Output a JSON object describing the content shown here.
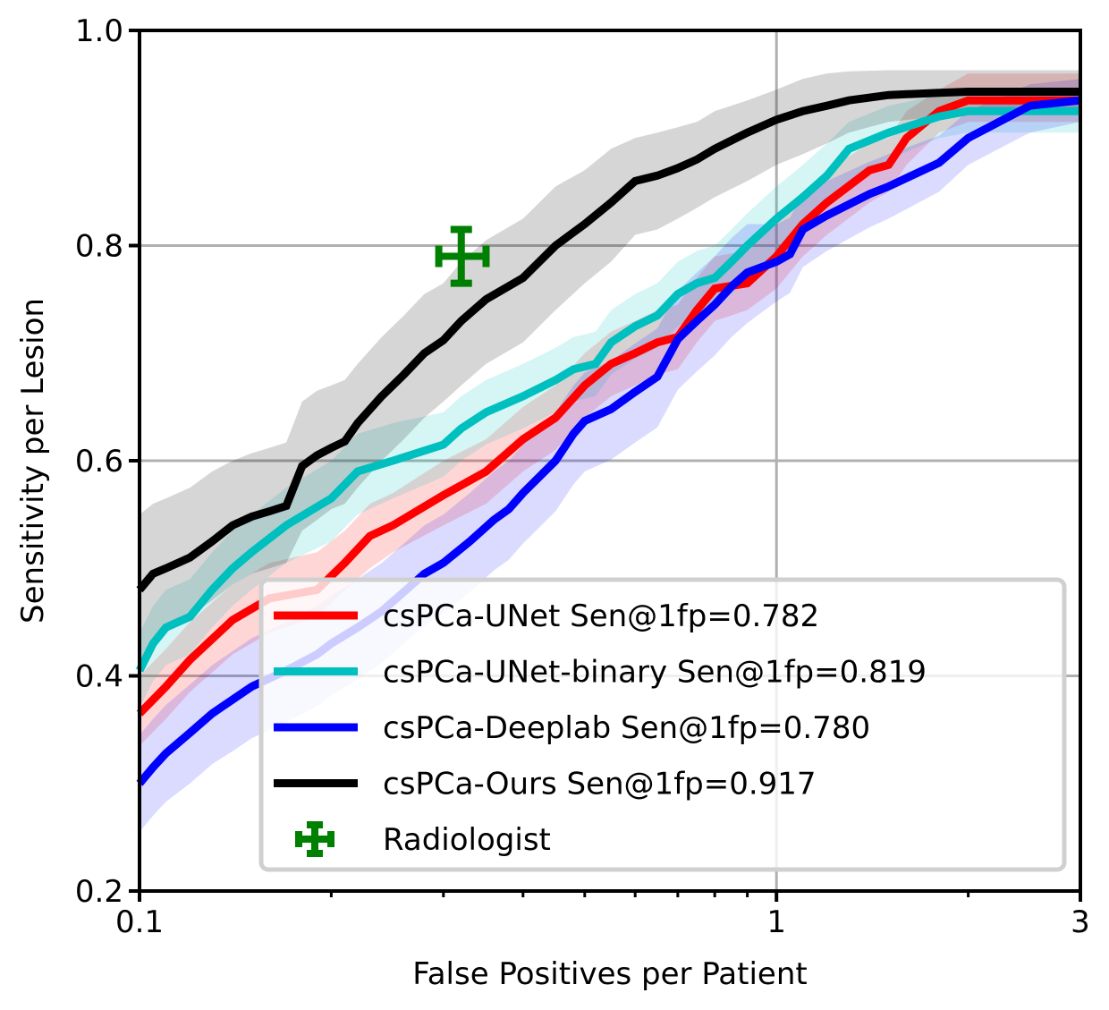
{
  "chart_data": {
    "type": "line",
    "xscale": "log",
    "xlim": [
      0.1,
      3
    ],
    "ylim": [
      0.2,
      1.0
    ],
    "xticks": [
      0.1,
      1,
      3
    ],
    "xtick_labels": [
      "0.1",
      "1",
      "3"
    ],
    "yticks": [
      0.2,
      0.4,
      0.6,
      0.8,
      1.0
    ],
    "ytick_labels": [
      "0.2",
      "0.4",
      "0.6",
      "0.8",
      "1.0"
    ],
    "xlabel": "False Positives per Patient",
    "ylabel": "Sensitivity per Lesion",
    "grid": true,
    "legend_position": "lower-right",
    "series": [
      {
        "name": "csPCa-UNet Sen@1fp=0.782",
        "color": "#ff0000",
        "band_opacity": 0.16,
        "x": [
          0.1,
          0.11,
          0.12,
          0.14,
          0.16,
          0.19,
          0.21,
          0.23,
          0.25,
          0.3,
          0.35,
          0.4,
          0.45,
          0.5,
          0.55,
          0.6,
          0.65,
          0.7,
          0.75,
          0.8,
          0.9,
          1.0,
          1.1,
          1.2,
          1.4,
          1.5,
          1.6,
          1.8,
          2.0,
          2.5,
          3.0
        ],
        "y": [
          0.365,
          0.39,
          0.415,
          0.452,
          0.472,
          0.48,
          0.505,
          0.53,
          0.54,
          0.568,
          0.59,
          0.62,
          0.64,
          0.67,
          0.69,
          0.7,
          0.71,
          0.715,
          0.74,
          0.76,
          0.765,
          0.79,
          0.82,
          0.84,
          0.87,
          0.875,
          0.9,
          0.925,
          0.935,
          0.935,
          0.935
        ],
        "lower": [
          0.335,
          0.36,
          0.385,
          0.42,
          0.44,
          0.455,
          0.48,
          0.5,
          0.515,
          0.54,
          0.56,
          0.59,
          0.61,
          0.64,
          0.66,
          0.67,
          0.68,
          0.685,
          0.71,
          0.73,
          0.74,
          0.76,
          0.79,
          0.81,
          0.84,
          0.85,
          0.875,
          0.905,
          0.915,
          0.915,
          0.915
        ],
        "upper": [
          0.4,
          0.425,
          0.45,
          0.485,
          0.505,
          0.515,
          0.535,
          0.56,
          0.57,
          0.6,
          0.62,
          0.65,
          0.67,
          0.7,
          0.72,
          0.73,
          0.74,
          0.745,
          0.77,
          0.79,
          0.795,
          0.82,
          0.85,
          0.87,
          0.895,
          0.9,
          0.925,
          0.945,
          0.96,
          0.96,
          0.96
        ]
      },
      {
        "name": "csPCa-UNet-binary Sen@1fp=0.819",
        "color": "#00bfbf",
        "band_opacity": 0.16,
        "x": [
          0.1,
          0.105,
          0.11,
          0.12,
          0.13,
          0.14,
          0.15,
          0.17,
          0.2,
          0.22,
          0.25,
          0.3,
          0.32,
          0.35,
          0.4,
          0.45,
          0.48,
          0.52,
          0.55,
          0.6,
          0.65,
          0.7,
          0.75,
          0.8,
          0.85,
          0.9,
          1.0,
          1.1,
          1.2,
          1.3,
          1.5,
          1.8,
          2.0,
          2.5,
          3.0
        ],
        "y": [
          0.405,
          0.43,
          0.445,
          0.455,
          0.48,
          0.5,
          0.515,
          0.54,
          0.565,
          0.59,
          0.6,
          0.615,
          0.63,
          0.645,
          0.66,
          0.675,
          0.685,
          0.69,
          0.71,
          0.725,
          0.735,
          0.755,
          0.765,
          0.77,
          0.785,
          0.8,
          0.825,
          0.845,
          0.865,
          0.89,
          0.905,
          0.92,
          0.925,
          0.925,
          0.925
        ],
        "lower": [
          0.37,
          0.395,
          0.41,
          0.42,
          0.445,
          0.465,
          0.48,
          0.505,
          0.525,
          0.55,
          0.565,
          0.585,
          0.6,
          0.615,
          0.63,
          0.645,
          0.655,
          0.66,
          0.68,
          0.695,
          0.705,
          0.725,
          0.735,
          0.74,
          0.755,
          0.77,
          0.795,
          0.815,
          0.835,
          0.86,
          0.88,
          0.9,
          0.905,
          0.905,
          0.905
        ],
        "upper": [
          0.44,
          0.465,
          0.48,
          0.49,
          0.515,
          0.535,
          0.55,
          0.575,
          0.6,
          0.625,
          0.635,
          0.645,
          0.66,
          0.675,
          0.69,
          0.705,
          0.715,
          0.72,
          0.74,
          0.755,
          0.765,
          0.785,
          0.795,
          0.8,
          0.815,
          0.83,
          0.855,
          0.875,
          0.895,
          0.915,
          0.93,
          0.94,
          0.945,
          0.945,
          0.945
        ]
      },
      {
        "name": "csPCa-Deeplab Sen@1fp=0.780",
        "color": "#0000ff",
        "band_opacity": 0.14,
        "x": [
          0.1,
          0.105,
          0.11,
          0.12,
          0.13,
          0.14,
          0.15,
          0.17,
          0.19,
          0.2,
          0.22,
          0.24,
          0.26,
          0.28,
          0.3,
          0.33,
          0.36,
          0.38,
          0.4,
          0.45,
          0.48,
          0.5,
          0.55,
          0.6,
          0.65,
          0.7,
          0.72,
          0.75,
          0.8,
          0.85,
          0.9,
          1.0,
          1.05,
          1.1,
          1.2,
          1.4,
          1.5,
          1.8,
          2.0,
          2.5,
          3.0
        ],
        "y": [
          0.3,
          0.315,
          0.328,
          0.347,
          0.365,
          0.378,
          0.39,
          0.405,
          0.42,
          0.43,
          0.445,
          0.46,
          0.478,
          0.495,
          0.505,
          0.525,
          0.545,
          0.555,
          0.57,
          0.6,
          0.625,
          0.637,
          0.648,
          0.664,
          0.678,
          0.713,
          0.72,
          0.73,
          0.745,
          0.762,
          0.775,
          0.785,
          0.792,
          0.815,
          0.828,
          0.848,
          0.855,
          0.877,
          0.9,
          0.93,
          0.935
        ],
        "lower": [
          0.255,
          0.27,
          0.283,
          0.3,
          0.318,
          0.33,
          0.342,
          0.357,
          0.372,
          0.382,
          0.397,
          0.412,
          0.43,
          0.447,
          0.458,
          0.478,
          0.498,
          0.508,
          0.523,
          0.553,
          0.578,
          0.59,
          0.601,
          0.617,
          0.631,
          0.666,
          0.673,
          0.683,
          0.698,
          0.715,
          0.728,
          0.748,
          0.756,
          0.78,
          0.795,
          0.817,
          0.825,
          0.85,
          0.875,
          0.905,
          0.915
        ],
        "upper": [
          0.345,
          0.36,
          0.373,
          0.392,
          0.41,
          0.423,
          0.435,
          0.45,
          0.465,
          0.475,
          0.49,
          0.505,
          0.523,
          0.54,
          0.55,
          0.57,
          0.59,
          0.6,
          0.615,
          0.645,
          0.67,
          0.682,
          0.693,
          0.709,
          0.723,
          0.758,
          0.765,
          0.775,
          0.79,
          0.807,
          0.82,
          0.82,
          0.826,
          0.848,
          0.86,
          0.878,
          0.885,
          0.902,
          0.925,
          0.95,
          0.955
        ]
      },
      {
        "name": "csPCa-Ours Sen@1fp=0.917",
        "color": "#000000",
        "band_opacity": 0.16,
        "x": [
          0.1,
          0.105,
          0.11,
          0.12,
          0.13,
          0.14,
          0.15,
          0.16,
          0.17,
          0.18,
          0.19,
          0.2,
          0.21,
          0.22,
          0.24,
          0.26,
          0.28,
          0.3,
          0.32,
          0.35,
          0.4,
          0.45,
          0.5,
          0.55,
          0.6,
          0.65,
          0.7,
          0.75,
          0.8,
          0.9,
          1.0,
          1.1,
          1.2,
          1.3,
          1.5,
          1.8,
          2.0,
          2.5,
          3.0
        ],
        "y": [
          0.48,
          0.495,
          0.5,
          0.51,
          0.525,
          0.54,
          0.548,
          0.553,
          0.558,
          0.595,
          0.605,
          0.612,
          0.618,
          0.635,
          0.66,
          0.68,
          0.7,
          0.712,
          0.73,
          0.75,
          0.77,
          0.8,
          0.82,
          0.84,
          0.86,
          0.865,
          0.872,
          0.88,
          0.89,
          0.905,
          0.917,
          0.925,
          0.93,
          0.935,
          0.94,
          0.942,
          0.943,
          0.943,
          0.943
        ],
        "lower": [
          0.41,
          0.43,
          0.44,
          0.455,
          0.47,
          0.485,
          0.495,
          0.5,
          0.505,
          0.535,
          0.545,
          0.555,
          0.56,
          0.575,
          0.6,
          0.62,
          0.64,
          0.655,
          0.67,
          0.69,
          0.71,
          0.74,
          0.765,
          0.785,
          0.81,
          0.815,
          0.825,
          0.835,
          0.845,
          0.86,
          0.875,
          0.885,
          0.895,
          0.905,
          0.915,
          0.92,
          0.925,
          0.925,
          0.925
        ],
        "upper": [
          0.55,
          0.56,
          0.565,
          0.575,
          0.59,
          0.6,
          0.607,
          0.612,
          0.617,
          0.655,
          0.665,
          0.67,
          0.675,
          0.69,
          0.715,
          0.735,
          0.755,
          0.765,
          0.785,
          0.805,
          0.825,
          0.855,
          0.87,
          0.89,
          0.9,
          0.905,
          0.91,
          0.915,
          0.925,
          0.935,
          0.945,
          0.955,
          0.96,
          0.962,
          0.963,
          0.963,
          0.963,
          0.963,
          0.963
        ]
      }
    ],
    "markers": [
      {
        "name": "Radiologist",
        "color": "#008000",
        "x": 0.32,
        "y": 0.79,
        "x_err": [
          0.295,
          0.35
        ],
        "y_err": [
          0.765,
          0.815
        ]
      }
    ],
    "legend": [
      {
        "label": "csPCa-UNet Sen@1fp=0.782",
        "color": "#ff0000",
        "kind": "line"
      },
      {
        "label": "csPCa-UNet-binary Sen@1fp=0.819",
        "color": "#00bfbf",
        "kind": "line"
      },
      {
        "label": "csPCa-Deeplab Sen@1fp=0.780",
        "color": "#0000ff",
        "kind": "line"
      },
      {
        "label": "csPCa-Ours Sen@1fp=0.917",
        "color": "#000000",
        "kind": "line"
      },
      {
        "label": "Radiologist",
        "color": "#008000",
        "kind": "errorbar"
      }
    ]
  }
}
